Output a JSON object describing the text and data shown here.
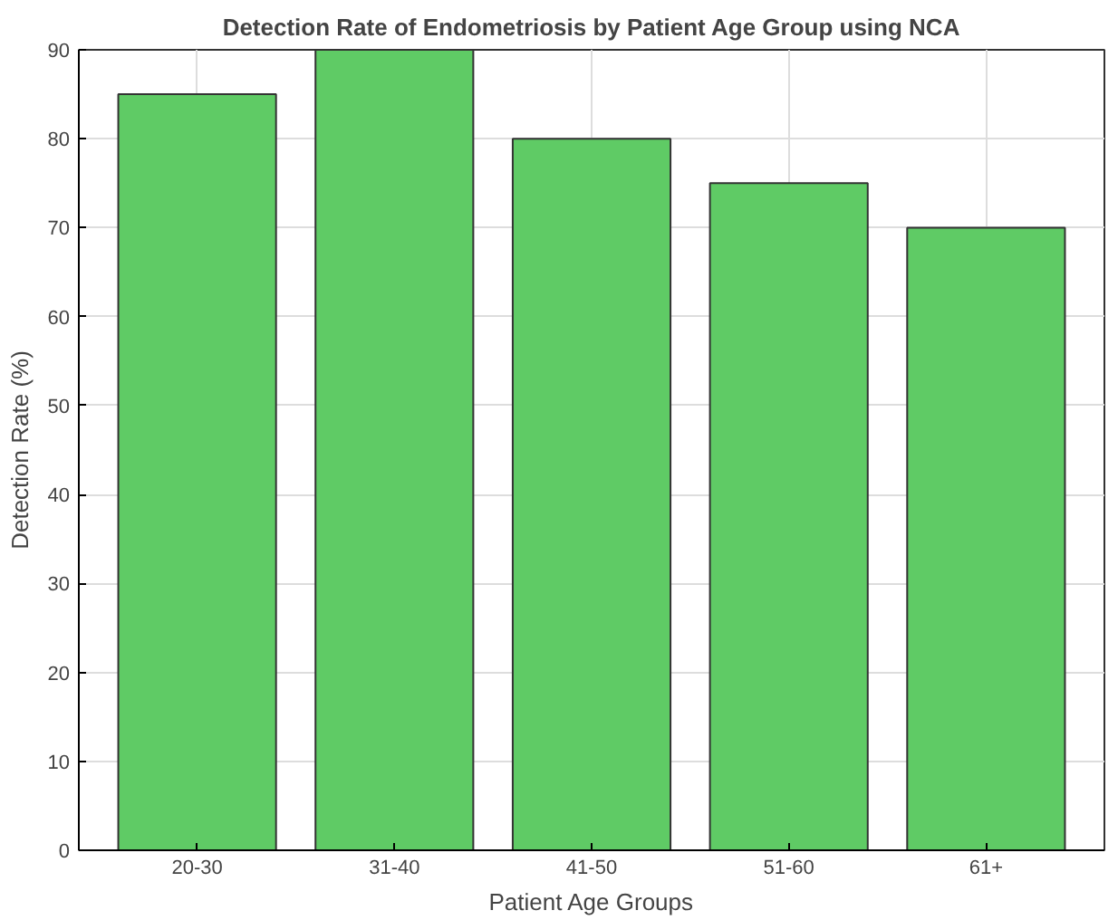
{
  "chart_data": {
    "type": "bar",
    "title": "Detection Rate of Endometriosis by Patient Age Group using NCA",
    "xlabel": "Patient Age Groups",
    "ylabel": "Detection Rate (%)",
    "categories": [
      "20-30",
      "31-40",
      "41-50",
      "51-60",
      "61+"
    ],
    "values": [
      85,
      90,
      80,
      75,
      70
    ],
    "color": "#5fcb65",
    "ylim": [
      0,
      90
    ],
    "yticks": [
      0,
      10,
      20,
      30,
      40,
      50,
      60,
      70,
      80,
      90
    ],
    "grid": true
  }
}
